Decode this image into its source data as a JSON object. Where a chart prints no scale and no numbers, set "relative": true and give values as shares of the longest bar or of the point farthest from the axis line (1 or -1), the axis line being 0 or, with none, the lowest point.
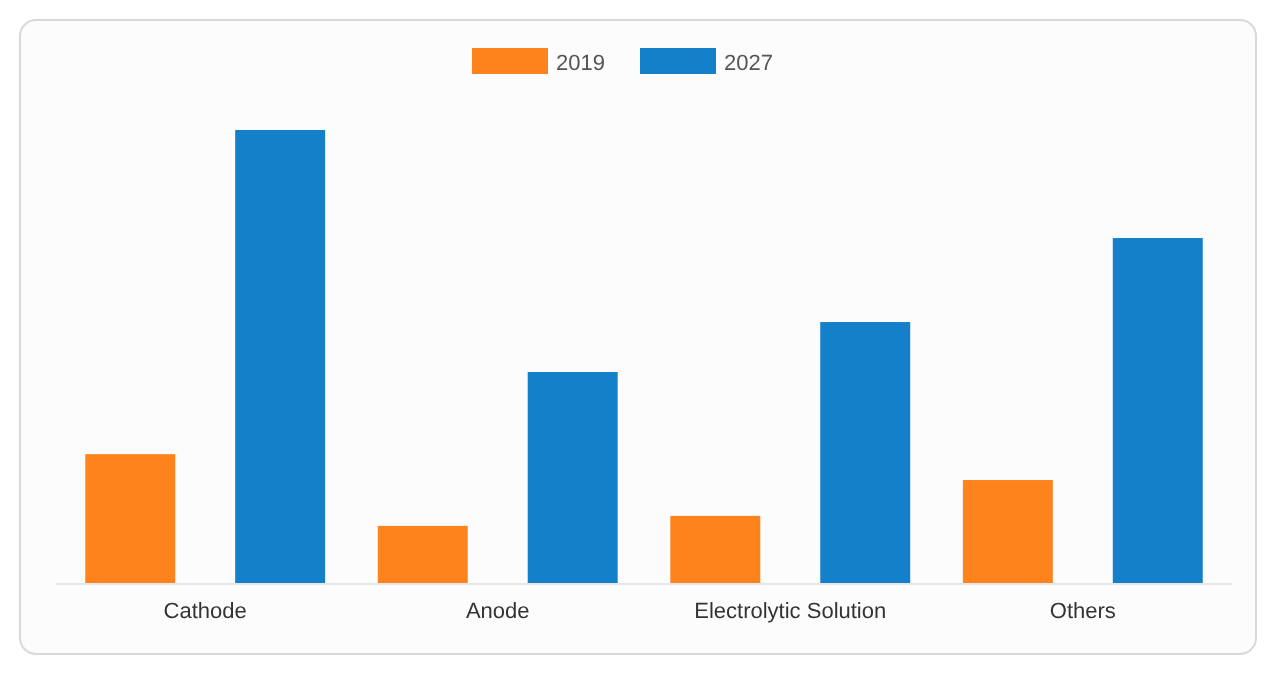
{
  "chart_data": {
    "type": "bar",
    "relative": true,
    "categories": [
      "Cathode",
      "Anode",
      "Electrolytic Solution",
      "Others"
    ],
    "series": [
      {
        "name": "2019",
        "color": "#ff831c",
        "values": [
          0.286,
          0.128,
          0.15,
          0.229
        ]
      },
      {
        "name": "2027",
        "color": "#1380c9",
        "values": [
          1,
          0.467,
          0.577,
          0.762
        ]
      }
    ],
    "legend": "top"
  }
}
